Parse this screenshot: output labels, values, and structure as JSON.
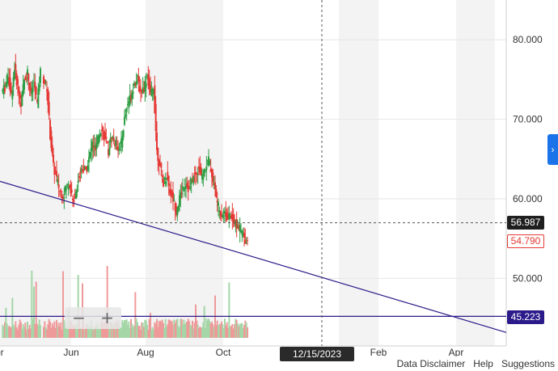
{
  "chart_data": {
    "type": "candlestick",
    "y_axis": {
      "ticks": [
        "80.000",
        "70.000",
        "60.000",
        "50.000"
      ],
      "tick_values": [
        80,
        70,
        60,
        50
      ],
      "range": [
        41.5,
        85
      ]
    },
    "x_axis": {
      "ticks": [
        "or",
        "Jun",
        "Aug",
        "Oct",
        "Feb",
        "Apr"
      ]
    },
    "price_path": [
      73.5,
      74,
      75.5,
      73,
      76.5,
      74,
      72,
      75,
      76,
      73,
      74.5,
      72,
      76,
      75,
      74,
      68,
      64,
      62.5,
      61,
      60.5,
      61.5,
      62,
      59.5,
      61,
      63,
      64,
      63.5,
      65,
      67,
      66,
      68,
      69,
      67.5,
      66,
      68,
      67,
      66.5,
      67,
      70,
      72,
      73,
      74.5,
      75,
      73.5,
      74,
      75.5,
      73,
      74,
      66,
      64,
      62,
      63,
      61,
      60,
      58.5,
      60,
      61.5,
      62,
      61,
      62.5,
      63,
      64,
      62.5,
      64,
      65,
      63,
      61,
      59,
      58,
      58.5,
      57.5,
      58,
      57,
      56.5,
      56,
      55,
      54.79
    ],
    "last_price": 54.79,
    "crosshair_price": 56.987,
    "horizontal_line": 45.223,
    "trendline": {
      "start_price": 62.2,
      "end_price": 43.2
    },
    "crosshair_date": "12/15/2023"
  },
  "labels": {
    "crosshair_price": "56.987",
    "last_price": "54.790",
    "horizontal_line": "45.223",
    "crosshair_date": "12/15/2023"
  },
  "colors": {
    "up": "#2e9e44",
    "down": "#e53935",
    "trendline": "#2b1a8a",
    "band": "#f3f3f3"
  },
  "zoom": {
    "minus": "−",
    "plus": "+"
  },
  "side_toggle": "›",
  "footer": {
    "disclaimer": "Data Disclaimer",
    "help": "Help",
    "suggestions": "Suggestions"
  }
}
